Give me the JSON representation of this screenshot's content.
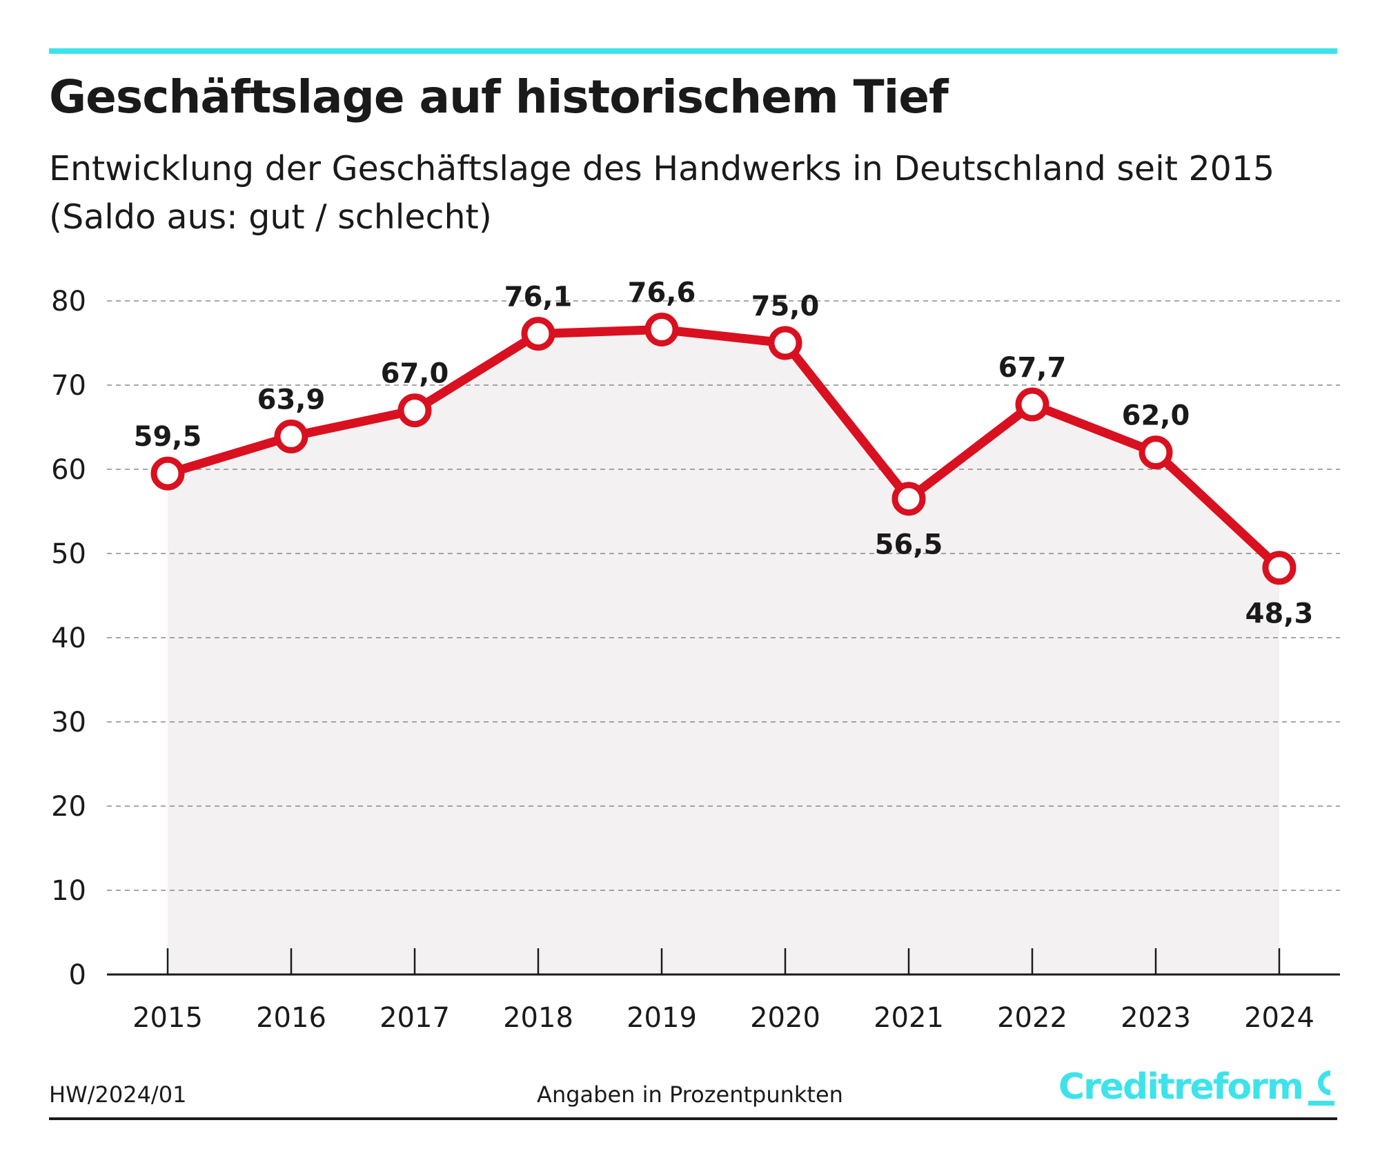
{
  "header": {
    "title": "Geschäftslage auf historischem Tief",
    "subtitle_line1": "Entwicklung der Geschäftslage des Handwerks in Deutschland seit 2015",
    "subtitle_line2": "(Saldo aus: gut / schlecht)"
  },
  "footer": {
    "source": "HW/2024/01",
    "unit_note": "Angaben in Prozentpunkten",
    "logo_text": "Creditreform"
  },
  "colors": {
    "accent": "#3ee3ea",
    "line": "#d9101f",
    "text": "#1a1a1a",
    "grid": "#888888",
    "area": "#f4f1f2"
  },
  "chart_data": {
    "type": "line",
    "categories": [
      "2015",
      "2016",
      "2017",
      "2018",
      "2019",
      "2020",
      "2021",
      "2022",
      "2023",
      "2024"
    ],
    "values": [
      59.5,
      63.9,
      67.0,
      76.1,
      76.6,
      75.0,
      56.5,
      67.7,
      62.0,
      48.3
    ],
    "data_labels": [
      "59,5",
      "63,9",
      "67,0",
      "76,1",
      "76,6",
      "75,0",
      "56,5",
      "67,7",
      "62,0",
      "48,3"
    ],
    "label_position": [
      "above",
      "above",
      "above",
      "above",
      "above",
      "above",
      "below",
      "above",
      "above",
      "below"
    ],
    "y_ticks": [
      0,
      10,
      20,
      30,
      40,
      50,
      60,
      70,
      80
    ],
    "ylim": [
      0,
      80
    ],
    "grid": "dashed-horizontal",
    "legend": "none"
  }
}
